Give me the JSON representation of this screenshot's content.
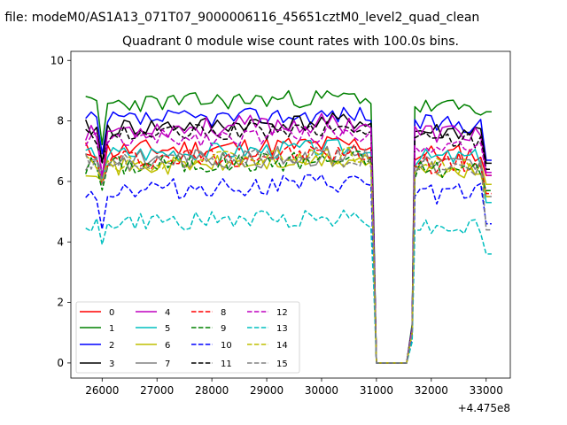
{
  "figure": {
    "suptitle": "n file: modeM0/AS1A13_071T07_9000006116_45651cztM0_level2_quad_clean",
    "title": "Quadrant 0 module wise count rates with 100.0s bins.",
    "x_offset_label": "+4.475e8"
  },
  "chart_data": {
    "type": "line",
    "title": "Quadrant 0 module wise count rates with 100.0s bins.",
    "xlabel": "",
    "ylabel": "",
    "x_offset": 447500000,
    "xlim": [
      25430,
      33440
    ],
    "ylim": [
      -0.5,
      10.3
    ],
    "xticks": [
      26000,
      27000,
      28000,
      29000,
      30000,
      31000,
      32000,
      33000
    ],
    "yticks": [
      0,
      2,
      4,
      6,
      8,
      10
    ],
    "grid": false,
    "legend_location": "lower-left",
    "legend_columns": 4,
    "time_bin_s": 100,
    "segments": [
      {
        "x_start": 25700,
        "x_end": 31000
      },
      {
        "x_start": 31000,
        "x_end": 31700
      },
      {
        "x_start": 31700,
        "x_end": 33100
      }
    ],
    "series": [
      {
        "name": "0",
        "color": "#ff0000",
        "dash": "solid",
        "level": 7.0,
        "end": 6.2,
        "dip": 5.9,
        "amp": 0.35,
        "seed": 11
      },
      {
        "name": "1",
        "color": "#008000",
        "dash": "solid",
        "level": 8.55,
        "end": 8.3,
        "dip": 7.2,
        "amp": 0.3,
        "seed": 23
      },
      {
        "name": "2",
        "color": "#0000ff",
        "dash": "solid",
        "level": 8.0,
        "end": 6.7,
        "dip": 6.9,
        "amp": 0.3,
        "seed": 37
      },
      {
        "name": "3",
        "color": "#000000",
        "dash": "solid",
        "level": 7.75,
        "end": 6.6,
        "dip": 6.6,
        "amp": 0.3,
        "seed": 41
      },
      {
        "name": "4",
        "color": "#bf00bf",
        "dash": "solid",
        "level": 7.7,
        "end": 6.3,
        "dip": 6.1,
        "amp": 0.35,
        "seed": 53
      },
      {
        "name": "5",
        "color": "#00bfbf",
        "dash": "solid",
        "level": 6.9,
        "end": 5.3,
        "dip": 6.0,
        "amp": 0.3,
        "seed": 67
      },
      {
        "name": "6",
        "color": "#bfbf00",
        "dash": "solid",
        "level": 6.45,
        "end": 5.9,
        "dip": 6.0,
        "amp": 0.3,
        "seed": 71
      },
      {
        "name": "7",
        "color": "#808080",
        "dash": "solid",
        "level": 6.65,
        "end": 5.5,
        "dip": 6.3,
        "amp": 0.35,
        "seed": 83
      },
      {
        "name": "8",
        "color": "#ff0000",
        "dash": "dashed",
        "level": 6.7,
        "end": 5.6,
        "dip": 5.9,
        "amp": 0.35,
        "seed": 97
      },
      {
        "name": "9",
        "color": "#008000",
        "dash": "dashed",
        "level": 6.5,
        "end": 5.7,
        "dip": 5.7,
        "amp": 0.35,
        "seed": 101
      },
      {
        "name": "10",
        "color": "#0000ff",
        "dash": "dashed",
        "level": 5.7,
        "end": 4.6,
        "dip": 4.4,
        "amp": 0.35,
        "seed": 113
      },
      {
        "name": "11",
        "color": "#000000",
        "dash": "dashed",
        "level": 7.5,
        "end": 6.4,
        "dip": 6.6,
        "amp": 0.3,
        "seed": 127
      },
      {
        "name": "12",
        "color": "#bf00bf",
        "dash": "dashed",
        "level": 7.35,
        "end": 6.2,
        "dip": 6.2,
        "amp": 0.3,
        "seed": 131
      },
      {
        "name": "13",
        "color": "#00bfbf",
        "dash": "dashed",
        "level": 4.6,
        "end": 3.6,
        "dip": 3.9,
        "amp": 0.3,
        "seed": 149
      },
      {
        "name": "14",
        "color": "#bfbf00",
        "dash": "dashed",
        "level": 6.6,
        "end": 5.5,
        "dip": 6.0,
        "amp": 0.3,
        "seed": 151
      },
      {
        "name": "15",
        "color": "#808080",
        "dash": "dashed",
        "level": 6.6,
        "end": 4.4,
        "dip": 5.9,
        "amp": 0.35,
        "seed": 163
      }
    ]
  }
}
